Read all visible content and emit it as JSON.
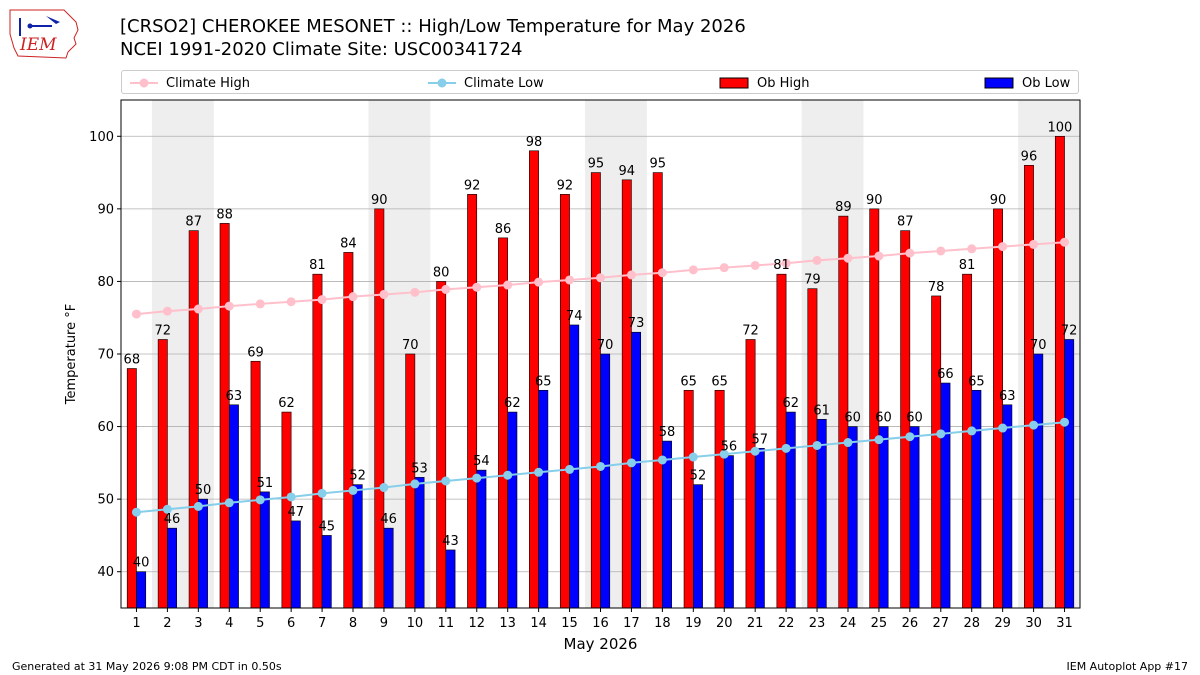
{
  "header": {
    "title_line1": "[CRSO2] CHEROKEE MESONET :: High/Low Temperature for May 2026",
    "title_line2": "NCEI 1991-2020 Climate Site: USC00341724",
    "logo_text": "IEM"
  },
  "footer": {
    "left": "Generated at 31 May 2026 9:08 PM CDT in 0.50s",
    "right": "IEM Autoplot App #17"
  },
  "colors": {
    "ob_high": "#ff0000",
    "ob_low": "#0000ff",
    "climate_high": "#ffc0cb",
    "climate_low": "#87ceeb",
    "weekend_shade": "#eeeeee",
    "grid": "#b0b0b0"
  },
  "chart_data": {
    "type": "bar",
    "title": "[CRSO2] CHEROKEE MESONET :: High/Low Temperature for May 2026",
    "subtitle": "NCEI 1991-2020 Climate Site: USC00341724",
    "xlabel": "May 2026",
    "ylabel": "Temperature °F",
    "categories": [
      "1",
      "2",
      "3",
      "4",
      "5",
      "6",
      "7",
      "8",
      "9",
      "10",
      "11",
      "12",
      "13",
      "14",
      "15",
      "16",
      "17",
      "18",
      "19",
      "20",
      "21",
      "22",
      "23",
      "24",
      "25",
      "26",
      "27",
      "28",
      "29",
      "30",
      "31"
    ],
    "ylim": [
      35,
      105
    ],
    "yticks": [
      40,
      50,
      60,
      70,
      80,
      90,
      100
    ],
    "grid": true,
    "legend_position": "top",
    "shaded_days": [
      [
        2,
        3
      ],
      [
        9,
        10
      ],
      [
        16,
        17
      ],
      [
        23,
        24
      ],
      [
        30,
        31
      ]
    ],
    "series": [
      {
        "name": "Ob High",
        "kind": "bar",
        "color": "#ff0000",
        "values": [
          68,
          72,
          87,
          88,
          69,
          62,
          81,
          84,
          90,
          70,
          80,
          92,
          86,
          98,
          92,
          95,
          94,
          95,
          65,
          65,
          72,
          81,
          79,
          89,
          90,
          87,
          78,
          81,
          90,
          96,
          100
        ],
        "labels": [
          "68",
          "72",
          "87",
          "88",
          "69",
          "62",
          "81",
          "84",
          "90",
          "70",
          "80",
          "92",
          "86",
          "98",
          "92",
          "95",
          "94",
          "95",
          "65",
          "65",
          "72",
          "81",
          "79",
          "89",
          "90",
          "87",
          "78",
          "81",
          "90",
          "96",
          "100"
        ]
      },
      {
        "name": "Ob Low",
        "kind": "bar",
        "color": "#0000ff",
        "values": [
          40,
          46,
          50,
          63,
          51,
          47,
          45,
          52,
          46,
          53,
          43,
          54,
          62,
          65,
          74,
          70,
          73,
          58,
          52,
          56,
          57,
          62,
          61,
          60,
          60,
          60,
          66,
          65,
          63,
          70,
          72
        ],
        "labels": [
          "40",
          "46",
          "50",
          "63",
          "51",
          "47",
          "45",
          "52",
          "46",
          "53",
          "43",
          "54",
          "62",
          "65",
          "74",
          "70",
          "73",
          "58",
          "52",
          "56",
          "57",
          "62",
          "61",
          "60",
          "60",
          "60",
          "66",
          "65",
          "63",
          "70",
          "72"
        ]
      },
      {
        "name": "Climate High",
        "kind": "line",
        "color": "#ffc0cb",
        "values": [
          75.5,
          75.9,
          76.2,
          76.6,
          76.9,
          77.2,
          77.5,
          77.9,
          78.2,
          78.5,
          78.9,
          79.2,
          79.5,
          79.9,
          80.2,
          80.5,
          80.9,
          81.2,
          81.6,
          81.9,
          82.2,
          82.5,
          82.9,
          83.2,
          83.5,
          83.9,
          84.2,
          84.5,
          84.8,
          85.1,
          85.4
        ]
      },
      {
        "name": "Climate Low",
        "kind": "line",
        "color": "#87ceeb",
        "values": [
          48.2,
          48.6,
          49.0,
          49.5,
          49.9,
          50.3,
          50.8,
          51.2,
          51.6,
          52.1,
          52.5,
          52.9,
          53.3,
          53.7,
          54.1,
          54.5,
          55.0,
          55.4,
          55.8,
          56.2,
          56.6,
          57.0,
          57.4,
          57.8,
          58.2,
          58.6,
          59.0,
          59.4,
          59.8,
          60.2,
          60.6
        ]
      }
    ]
  }
}
